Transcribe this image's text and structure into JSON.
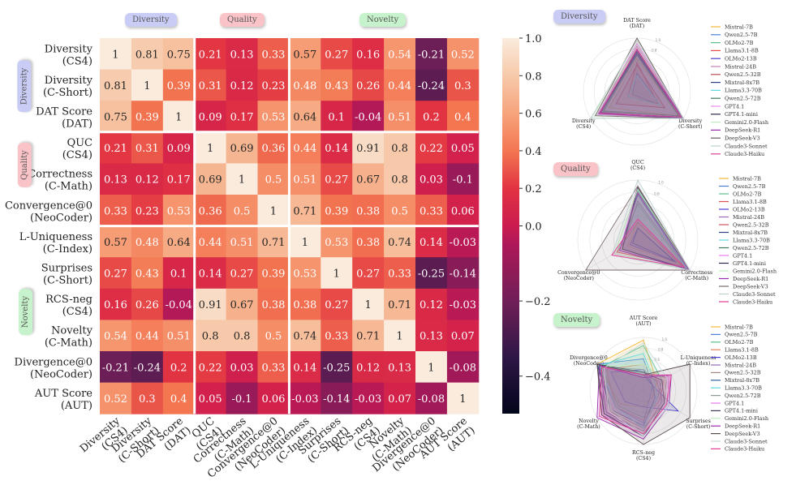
{
  "groups": {
    "diversity": "Diversity",
    "quality": "Quality",
    "novelty": "Novelty"
  },
  "colors": {
    "diversity_badge": "#c9cdf6",
    "quality_badge": "#f9c3c7",
    "novelty_badge": "#c6f3cb"
  },
  "chart_data": [
    {
      "type": "heatmap",
      "colormap": "rocket",
      "norm": "two-slope, centered at 0",
      "vmin": -0.5,
      "vcenter": 0,
      "vmax": 1,
      "labels": [
        "Diversity\n(CS4)",
        "Diversity\n(C-Short)",
        "DAT Score\n(DAT)",
        "QUC\n(CS4)",
        "Correctness\n(C-Math)",
        "Convergence@0\n(NeoCoder)",
        "L-Uniqueness\n(C-Index)",
        "Surprises\n(C-Short)",
        "RCS-neg\n(CS4)",
        "Novelty\n(C-Math)",
        "Divergence@0\n(NeoCoder)",
        "AUT Score\n(AUT)"
      ],
      "values": [
        [
          1,
          0.81,
          0.75,
          0.21,
          0.13,
          0.33,
          0.57,
          0.27,
          0.16,
          0.54,
          -0.21,
          0.52
        ],
        [
          0.81,
          1,
          0.39,
          0.31,
          0.12,
          0.23,
          0.48,
          0.43,
          0.26,
          0.44,
          -0.24,
          0.3
        ],
        [
          0.75,
          0.39,
          1,
          0.09,
          0.17,
          0.53,
          0.64,
          0.1,
          -0.04,
          0.51,
          0.2,
          0.4
        ],
        [
          0.21,
          0.31,
          0.09,
          1,
          0.69,
          0.36,
          0.44,
          0.14,
          0.91,
          0.8,
          0.22,
          0.05
        ],
        [
          0.13,
          0.12,
          0.17,
          0.69,
          1,
          0.5,
          0.51,
          0.27,
          0.67,
          0.8,
          0.03,
          -0.1
        ],
        [
          0.33,
          0.23,
          0.53,
          0.36,
          0.5,
          1,
          0.71,
          0.39,
          0.38,
          0.5,
          0.33,
          0.06
        ],
        [
          0.57,
          0.48,
          0.64,
          0.44,
          0.51,
          0.71,
          1,
          0.53,
          0.38,
          0.74,
          0.14,
          -0.03
        ],
        [
          0.27,
          0.43,
          0.1,
          0.14,
          0.27,
          0.39,
          0.53,
          1,
          0.27,
          0.33,
          -0.25,
          -0.14
        ],
        [
          0.16,
          0.26,
          -0.04,
          0.91,
          0.67,
          0.38,
          0.38,
          0.27,
          1,
          0.71,
          0.12,
          -0.03
        ],
        [
          0.54,
          0.44,
          0.51,
          0.8,
          0.8,
          0.5,
          0.74,
          0.33,
          0.71,
          1,
          0.13,
          0.07
        ],
        [
          -0.21,
          -0.24,
          0.2,
          0.22,
          0.03,
          0.33,
          0.14,
          -0.25,
          0.12,
          0.13,
          1,
          -0.08
        ],
        [
          0.52,
          0.3,
          0.4,
          0.05,
          -0.1,
          0.06,
          -0.03,
          -0.14,
          -0.03,
          0.07,
          -0.08,
          1
        ]
      ],
      "colorbar_ticks": [
        1.0,
        0.8,
        0.6,
        0.4,
        0.2,
        0.0,
        -0.2,
        -0.4
      ],
      "colorbar_tick_labels": [
        "1.0",
        "0.8",
        "0.6",
        "0.4",
        "0.2",
        "0.0",
        "−0.2",
        "−0.4"
      ]
    },
    {
      "type": "radar",
      "group": "Diversity",
      "axes": [
        "DAT Score\n(DAT)",
        "Diversity\n(C-Short)",
        "Diversity\n(CS4)"
      ],
      "ring_labels": [
        "0.8",
        "1.0"
      ],
      "series": [
        {
          "name": "Mistral-7B",
          "color": "#f2b93b",
          "values": [
            0.62,
            0.92,
            0.6
          ]
        },
        {
          "name": "Qwen2.5-7B",
          "color": "#4a7fd8",
          "values": [
            0.35,
            0.5,
            0.1
          ]
        },
        {
          "name": "OLMo2-7B",
          "color": "#5cc08a",
          "values": [
            0.7,
            0.9,
            0.75
          ]
        },
        {
          "name": "Llama3.1-8B",
          "color": "#e05050",
          "values": [
            0.55,
            0.45,
            0.2
          ]
        },
        {
          "name": "OLMo2-13B",
          "color": "#4b3fd6",
          "values": [
            0.7,
            0.95,
            0.8
          ]
        },
        {
          "name": "Mistral-24B",
          "color": "#c77fb0",
          "values": [
            0.85,
            1.0,
            0.85
          ]
        },
        {
          "name": "Qwen2.5-32B",
          "color": "#b84a55",
          "values": [
            0.5,
            0.6,
            0.45
          ]
        },
        {
          "name": "Mixtral-8x7B",
          "color": "#2d3f8a",
          "values": [
            0.72,
            0.98,
            0.78
          ]
        },
        {
          "name": "Llama3.3-70B",
          "color": "#5fd8e0",
          "values": [
            0.3,
            0.5,
            0.2
          ]
        },
        {
          "name": "Qwen2.5-72B",
          "color": "#3e7a5a",
          "values": [
            0.68,
            0.9,
            0.72
          ]
        },
        {
          "name": "GPT4.1",
          "color": "#e88ae8",
          "values": [
            0.9,
            1.0,
            0.85
          ]
        },
        {
          "name": "GPT4.1-mini",
          "color": "#2a2a4a",
          "values": [
            0.75,
            0.95,
            0.8
          ]
        },
        {
          "name": "Gemini2.0-Flash",
          "color": "#bfeebb",
          "values": [
            0.8,
            1.0,
            1.0
          ]
        },
        {
          "name": "DeepSeek-R1",
          "color": "#9a2ab0",
          "values": [
            0.78,
            1.0,
            0.82
          ]
        },
        {
          "name": "DeepSeek-V3",
          "color": "#6a5a5a",
          "values": [
            1.0,
            1.0,
            0.9
          ]
        },
        {
          "name": "Claude3-Sonnet",
          "color": "#bfd0d0",
          "values": [
            0.95,
            1.0,
            1.0
          ]
        },
        {
          "name": "Claude3-Haiku",
          "color": "#d8409a",
          "values": [
            0.8,
            0.95,
            0.8
          ]
        }
      ]
    },
    {
      "type": "radar",
      "group": "Quality",
      "axes": [
        "QUC\n(CS4)",
        "Correctness\n(C-Math)",
        "Convergence@0\n(NeoCoder)"
      ],
      "ring_labels": [
        "0.8",
        "1.0"
      ],
      "series": [
        {
          "name": "Mistral-7B",
          "color": "#f2b93b",
          "values": [
            0.3,
            0.8,
            0.2
          ]
        },
        {
          "name": "Qwen2.5-7B",
          "color": "#4a7fd8",
          "values": [
            0.75,
            0.95,
            0.35
          ]
        },
        {
          "name": "OLMo2-7B",
          "color": "#5cc08a",
          "values": [
            0.6,
            0.9,
            0.4
          ]
        },
        {
          "name": "Llama3.1-8B",
          "color": "#e05050",
          "values": [
            0.3,
            0.85,
            0.4
          ]
        },
        {
          "name": "OLMo2-13B",
          "color": "#4b3fd6",
          "values": [
            0.2,
            0.75,
            0.15
          ]
        },
        {
          "name": "Mistral-24B",
          "color": "#9b6bb8",
          "values": [
            0.65,
            0.95,
            0.3
          ]
        },
        {
          "name": "Qwen2.5-32B",
          "color": "#d0505a",
          "values": [
            0.8,
            1.0,
            0.3
          ]
        },
        {
          "name": "Mixtral-8x7B",
          "color": "#2d3f8a",
          "values": [
            0.2,
            0.7,
            0.1
          ]
        },
        {
          "name": "Llama3.3-70B",
          "color": "#5fd8e0",
          "values": [
            0.82,
            0.95,
            0.35
          ]
        },
        {
          "name": "Qwen2.5-72B",
          "color": "#3e7a5a",
          "values": [
            0.85,
            0.98,
            0.3
          ]
        },
        {
          "name": "GPT4.1",
          "color": "#ee7aee",
          "values": [
            0.9,
            1.0,
            0.35
          ]
        },
        {
          "name": "GPT4.1-mini",
          "color": "#2a2a4a",
          "values": [
            0.88,
            1.0,
            0.3
          ]
        },
        {
          "name": "Gemini2.0-Flash",
          "color": "#bfeebb",
          "values": [
            0.85,
            1.0,
            0.45
          ]
        },
        {
          "name": "DeepSeek-R1",
          "color": "#9a2ab0",
          "values": [
            0.78,
            0.98,
            0.35
          ]
        },
        {
          "name": "DeepSeek-V3",
          "color": "#7a6a6a",
          "values": [
            0.9,
            1.0,
            1.0
          ]
        },
        {
          "name": "Claude3-Sonnet",
          "color": "#bfd0d0",
          "values": [
            1.0,
            1.0,
            0.5
          ]
        },
        {
          "name": "Claude3-Haiku",
          "color": "#e0409a",
          "values": [
            0.35,
            0.9,
            0.5
          ]
        }
      ]
    },
    {
      "type": "radar",
      "group": "Novelty",
      "axes": [
        "AUT Score\n(AUT)",
        "L-Uniqueness\n(C-Index)",
        "Surprises\n(C-Short)",
        "RCS-neg\n(CS4)",
        "Novelty\n(C-Math)",
        "Divergence@0\n(NeoCoder)"
      ],
      "ring_labels": [
        "0.6",
        "0.8",
        "1.0"
      ],
      "series": [
        {
          "name": "Mistral-7B",
          "color": "#f2b93b",
          "values": [
            0.95,
            0.3,
            0.2,
            0.3,
            0.5,
            1.0
          ]
        },
        {
          "name": "Qwen2.5-7B",
          "color": "#4a7fd8",
          "values": [
            0.6,
            0.2,
            0.15,
            0.6,
            0.6,
            1.0
          ]
        },
        {
          "name": "OLMo2-7B",
          "color": "#5cc08a",
          "values": [
            0.85,
            0.4,
            0.3,
            0.5,
            0.55,
            0.9
          ]
        },
        {
          "name": "Llama3.1-8B",
          "color": "#e0805a",
          "values": [
            0.5,
            0.45,
            0.35,
            0.55,
            0.6,
            0.8
          ]
        },
        {
          "name": "OLMo2-13B",
          "color": "#4b3fd6",
          "values": [
            0.4,
            0.2,
            0.75,
            0.3,
            0.4,
            0.7
          ]
        },
        {
          "name": "Mistral-24B",
          "color": "#9b6bb8",
          "values": [
            0.3,
            0.35,
            0.4,
            0.75,
            0.8,
            0.95
          ]
        },
        {
          "name": "Qwen2.5-32B",
          "color": "#a08a80",
          "values": [
            0.35,
            0.5,
            0.45,
            0.7,
            0.75,
            0.9
          ]
        },
        {
          "name": "Mixtral-8x7B",
          "color": "#2d5f9a",
          "values": [
            0.3,
            0.2,
            0.25,
            0.65,
            0.7,
            1.0
          ]
        },
        {
          "name": "Llama3.3-70B",
          "color": "#5fd8e0",
          "values": [
            0.7,
            0.25,
            0.3,
            0.7,
            0.6,
            0.95
          ]
        },
        {
          "name": "Qwen2.5-72B",
          "color": "#8a9a9a",
          "values": [
            0.4,
            0.3,
            0.4,
            0.75,
            0.85,
            0.9
          ]
        },
        {
          "name": "GPT4.1",
          "color": "#ee7aee",
          "values": [
            0.3,
            0.55,
            0.5,
            0.8,
            0.9,
            0.85
          ]
        },
        {
          "name": "GPT4.1-mini",
          "color": "#3a3a5a",
          "values": [
            0.35,
            0.4,
            0.45,
            0.85,
            0.85,
            1.0
          ]
        },
        {
          "name": "Gemini2.0-Flash",
          "color": "#bfeebb",
          "values": [
            0.5,
            0.45,
            0.5,
            0.8,
            0.7,
            0.9
          ]
        },
        {
          "name": "DeepSeek-R1",
          "color": "#9a2ab0",
          "values": [
            0.25,
            0.6,
            0.55,
            0.9,
            1.0,
            0.95
          ]
        },
        {
          "name": "DeepSeek-V3",
          "color": "#5a4a4a",
          "values": [
            0.3,
            1.0,
            1.0,
            1.0,
            0.9,
            1.0
          ]
        },
        {
          "name": "Claude3-Sonnet",
          "color": "#c8dada",
          "values": [
            0.9,
            0.5,
            0.55,
            0.85,
            0.75,
            0.85
          ]
        },
        {
          "name": "Claude3-Haiku",
          "color": "#e0409a",
          "values": [
            0.3,
            0.6,
            0.5,
            0.8,
            0.95,
            0.9
          ]
        }
      ]
    }
  ]
}
